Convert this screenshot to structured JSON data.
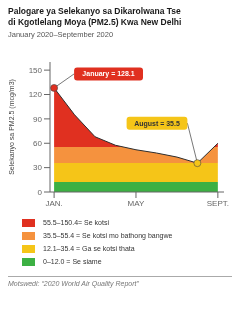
{
  "chart_data": {
    "type": "area",
    "title": [
      "Palogare ya Selekanyo sa Dikarolwana Tse",
      "di Kgotlelang Moya (PM2.5) Kwa New Delhi"
    ],
    "subtitle": "January 2020–September 2020",
    "y_label": "Selekanyo sa PM2.5 (mcg/m3)",
    "x": [
      0,
      1,
      2,
      3,
      4,
      5,
      6,
      7,
      8
    ],
    "values": [
      128.1,
      95.0,
      68.0,
      57.5,
      52.0,
      48.0,
      43.0,
      35.5,
      60.0
    ],
    "color": "#2d2d2d",
    "xlim": [
      -0.2,
      8.3
    ],
    "xticks": [
      {
        "value": 0,
        "label": "JAN."
      },
      {
        "value": 4,
        "label": "MAY"
      },
      {
        "value": 8,
        "label": "SEPT."
      }
    ],
    "ylim": [
      0,
      160
    ],
    "yticks": [
      0,
      30,
      60,
      90,
      120,
      150
    ],
    "grid": false,
    "bands": [
      {
        "from": 55.5,
        "label": "55.5–150.4= Se kotsi",
        "color": "#e03020"
      },
      {
        "from": 35.5,
        "label": "35.5–55.4 = Se kotsi mo bathong bangwe",
        "color": "#f5923e"
      },
      {
        "from": 12.1,
        "label": "12.1–35.4 = Ga se kotsi thata",
        "color": "#f5c518"
      },
      {
        "from": 0,
        "label": "0–12.0 = Se siame",
        "color": "#3cb043"
      }
    ],
    "annotations": [
      {
        "x": 0,
        "y": 128.1,
        "text": "January = 128.1",
        "color": "#e03020"
      },
      {
        "x": 7,
        "y": 35.5,
        "text": "August = 35.5",
        "color": "#f5c518"
      }
    ],
    "source": "Motswedi: “2020 World Air Quality Report”"
  }
}
